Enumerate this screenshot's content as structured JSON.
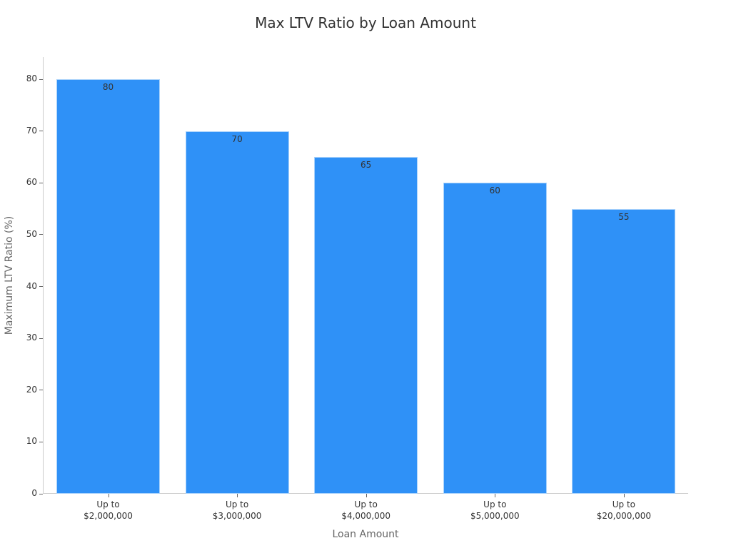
{
  "chart_data": {
    "type": "bar",
    "title": "Max LTV Ratio by Loan Amount",
    "xlabel": "Loan Amount",
    "ylabel": "Maximum LTV Ratio (%)",
    "categories": [
      "Up to\n$2,000,000",
      "Up to\n$3,000,000",
      "Up to\n$4,000,000",
      "Up to\n$5,000,000",
      "Up to\n$20,000,000"
    ],
    "category_lines": [
      [
        "Up to",
        "$2,000,000"
      ],
      [
        "Up to",
        "$3,000,000"
      ],
      [
        "Up to",
        "$4,000,000"
      ],
      [
        "Up to",
        "$5,000,000"
      ],
      [
        "Up to",
        "$20,000,000"
      ]
    ],
    "values": [
      80,
      70,
      65,
      60,
      55
    ],
    "yticks": [
      0,
      10,
      20,
      30,
      40,
      50,
      60,
      70,
      80
    ],
    "ylim": [
      0,
      84
    ],
    "grid": false,
    "bar_color": "#2f91f7",
    "data_labels": true
  }
}
